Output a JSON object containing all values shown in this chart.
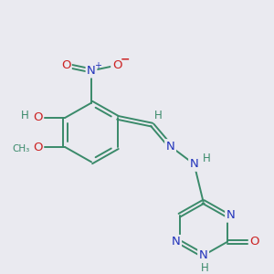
{
  "bg_color": "#eaeaf0",
  "colors": {
    "C": "#3a8a6a",
    "N": "#2233bb",
    "O": "#cc2222",
    "H": "#3a8a6a",
    "bond": "#3a8a6a"
  },
  "figsize": [
    3.0,
    3.0
  ],
  "dpi": 100
}
